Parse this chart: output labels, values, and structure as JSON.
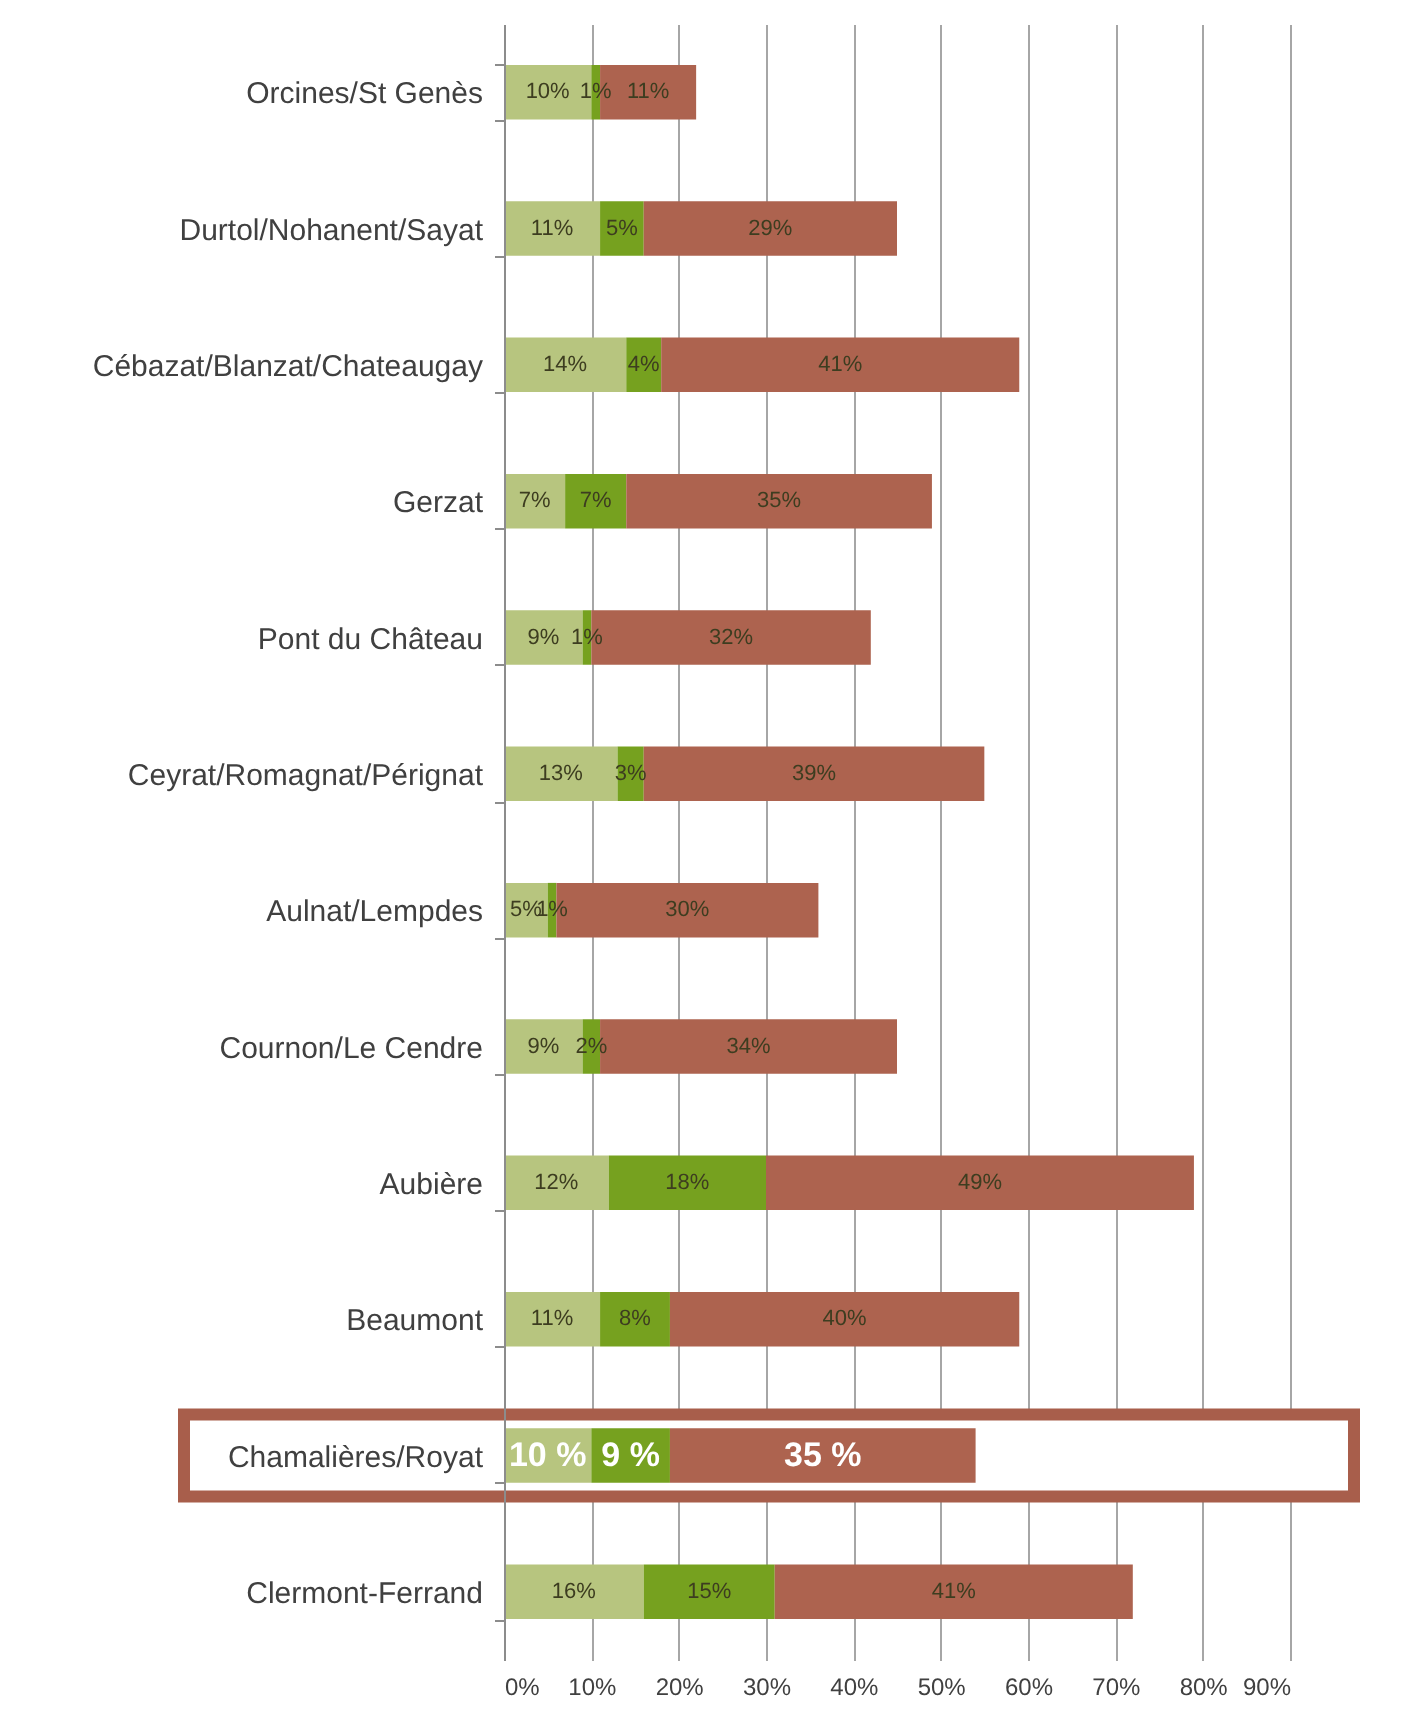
{
  "chart_data": {
    "type": "bar",
    "orientation": "horizontal",
    "stacked": true,
    "categories": [
      "Orcines/St Genès",
      "Durtol/Nohanent/Sayat",
      "Cébazat/Blanzat/Chateaugay",
      "Gerzat",
      "Pont du Château",
      "Ceyrat/Romagnat/Pérignat",
      "Aulnat/Lempdes",
      "Cournon/Le Cendre",
      "Aubière",
      "Beaumont",
      "Chamalières/Royat",
      "Clermont-Ferrand"
    ],
    "series": [
      {
        "color": "#b7c57f",
        "values": [
          10,
          11,
          14,
          7,
          9,
          13,
          5,
          9,
          12,
          11,
          10,
          16
        ],
        "value_labels": [
          "10%",
          "11%",
          "14%",
          "7%",
          "9%",
          "13%",
          "5%",
          "9%",
          "12%",
          "11%",
          "10 %",
          "16%"
        ]
      },
      {
        "color": "#76a11f",
        "values": [
          1,
          5,
          4,
          7,
          1,
          3,
          1,
          2,
          18,
          8,
          9,
          15
        ],
        "value_labels": [
          "1%",
          "5%",
          "4%",
          "7%",
          "1%",
          "3%",
          "1%",
          "2%",
          "18%",
          "8%",
          "9 %",
          "15%"
        ]
      },
      {
        "color": "#ad634f",
        "values": [
          11,
          29,
          41,
          35,
          32,
          39,
          30,
          34,
          49,
          40,
          35,
          41
        ],
        "value_labels": [
          "11%",
          "29%",
          "41%",
          "35%",
          "32%",
          "39%",
          "30%",
          "34%",
          "49%",
          "40%",
          "35 %",
          "41%"
        ]
      }
    ],
    "xlim": [
      0,
      90
    ],
    "xticks": [
      {
        "value": 0,
        "label": "0%"
      },
      {
        "value": 10,
        "label": "10%"
      },
      {
        "value": 20,
        "label": "20%"
      },
      {
        "value": 30,
        "label": "30%"
      },
      {
        "value": 40,
        "label": "40%"
      },
      {
        "value": 50,
        "label": "50%"
      },
      {
        "value": 60,
        "label": "60%"
      },
      {
        "value": 70,
        "label": "70%"
      },
      {
        "value": 80,
        "label": "80%"
      },
      {
        "value": 90,
        "label": "90%"
      }
    ],
    "grid": "x",
    "bands": [
      {
        "axis": "y",
        "from": "Chamalières/Royat",
        "to": "Chamalières/Royat",
        "color": "#a85e4b"
      }
    ]
  }
}
